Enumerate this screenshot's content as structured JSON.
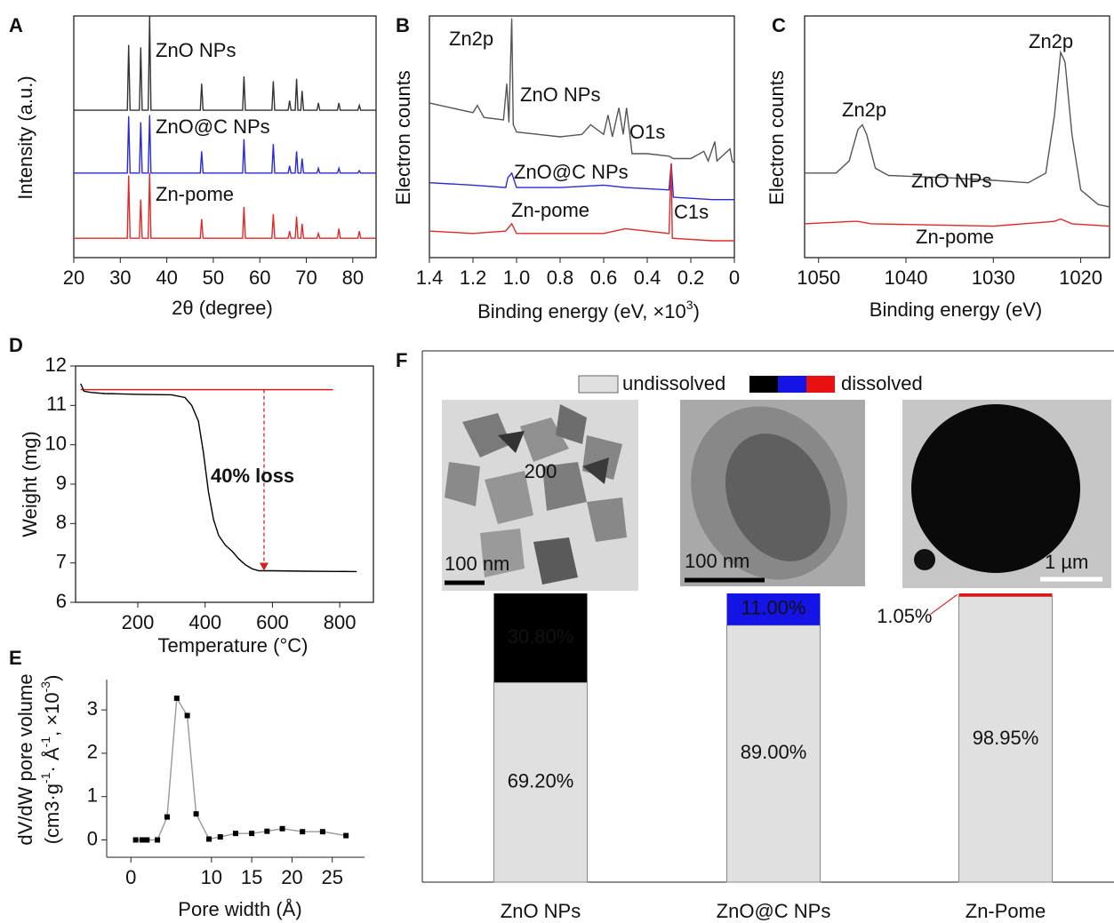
{
  "chart_data": [
    {
      "type": "line",
      "label": "A",
      "ylabel": "Intensity (a.u.)",
      "xlabel": "2θ (degree)",
      "xlim": [
        20,
        85
      ],
      "xticks": [
        20,
        30,
        40,
        50,
        60,
        70,
        80
      ],
      "ylim": [
        0,
        100
      ],
      "x": [
        20,
        31.5,
        31.8,
        32.1,
        34.1,
        34.4,
        34.7,
        36,
        36.3,
        36.6,
        47.2,
        47.5,
        47.8,
        56.3,
        56.6,
        56.9,
        62.6,
        62.9,
        63.2,
        66.1,
        66.4,
        66.7,
        67.6,
        67.9,
        68.2,
        68.8,
        69.1,
        69.4,
        72.3,
        72.6,
        72.9,
        76.7,
        77,
        77.3,
        81.1,
        81.4,
        81.7,
        85
      ],
      "series": [
        {
          "name": "ZnO NPs",
          "color": "#333333",
          "values": [
            61,
            61,
            88,
            61,
            61,
            87,
            61,
            61,
            100,
            61,
            61,
            72,
            61,
            61,
            75,
            61,
            61,
            73,
            61,
            61,
            65,
            61,
            61,
            74,
            61,
            61,
            69,
            61,
            61,
            64,
            61,
            61,
            64,
            61,
            61,
            63,
            61,
            61
          ]
        },
        {
          "name": "ZnO@C NPs",
          "color": "#2a2ad6",
          "values": [
            35,
            35,
            58.5,
            35,
            35,
            56,
            35,
            35,
            59,
            35,
            35,
            44,
            35,
            35,
            49,
            35,
            35,
            47,
            35,
            35,
            38,
            35,
            35,
            44,
            35,
            35,
            41,
            35,
            35,
            37,
            35,
            35,
            37,
            35,
            35,
            36,
            35,
            35
          ]
        },
        {
          "name": "Zn-pome",
          "color": "#e02a2a",
          "values": [
            8,
            8,
            34,
            8,
            8,
            24,
            8,
            8,
            35,
            8,
            8,
            16,
            8,
            8,
            21,
            8,
            8,
            18,
            8,
            8,
            11,
            8,
            8,
            17,
            8,
            8,
            14,
            8,
            8,
            10,
            8,
            8,
            12,
            8,
            8,
            11,
            8,
            8
          ]
        }
      ]
    },
    {
      "type": "line",
      "label": "B",
      "ylabel": "Electron counts",
      "xlabel_parts": [
        "Binding energy (eV, ×10",
        "3",
        ")"
      ],
      "xlim": [
        1.4,
        0
      ],
      "xticks": [
        1.4,
        1.2,
        {
          "value": 1,
          "label": "1.0"
        },
        0.8,
        0.6,
        0.4,
        0.2,
        0
      ],
      "ylim": [
        0,
        100
      ],
      "annotations": [
        "Zn2p",
        "O1s",
        "C1s"
      ],
      "series": [
        {
          "name": "ZnO NPs",
          "color": "#555555",
          "x": [
            1.4,
            1.3,
            1.2,
            1.18,
            1.15,
            1.06,
            1.045,
            1.035,
            1.022,
            1.015,
            1.0,
            0.9,
            0.8,
            0.7,
            0.66,
            0.6,
            0.58,
            0.56,
            0.53,
            0.51,
            0.495,
            0.48,
            0.47,
            0.4,
            0.3,
            0.28,
            0.2,
            0.14,
            0.12,
            0.09,
            0.08,
            0.02,
            0.01,
            0
          ],
          "values": [
            64,
            62,
            60,
            63,
            58,
            57,
            72,
            56,
            99,
            55,
            52,
            51,
            50,
            51,
            55,
            51,
            59,
            50,
            62,
            51,
            62,
            51,
            43,
            43,
            42,
            41,
            41,
            44,
            40,
            48,
            40,
            45,
            40,
            39
          ]
        },
        {
          "name": "ZnO@C NPs",
          "color": "#2a2ad6",
          "x": [
            1.4,
            1.2,
            1.05,
            1.04,
            1.022,
            1.0,
            0.8,
            0.6,
            0.5,
            0.3,
            0.29,
            0.28,
            0.1,
            0
          ],
          "values": [
            31,
            30,
            29,
            33,
            35,
            29,
            29,
            30,
            29,
            28,
            39,
            25,
            24,
            24
          ]
        },
        {
          "name": "Zn-pome",
          "color": "#e02a2a",
          "x": [
            1.4,
            1.2,
            1.05,
            1.022,
            1.0,
            0.6,
            0.5,
            0.3,
            0.29,
            0.285,
            0.1,
            0
          ],
          "values": [
            11,
            10,
            11,
            14,
            10,
            10,
            12,
            10,
            39,
            8,
            7,
            7
          ]
        }
      ]
    },
    {
      "type": "line",
      "label": "C",
      "ylabel": "Electron counts",
      "xlabel": "Binding energy (eV)",
      "xlim": [
        1051.6,
        1016.7
      ],
      "xticks": [
        1050,
        1040,
        1030,
        1020
      ],
      "ylim": [
        0,
        100
      ],
      "annotations": [
        "Zn2p",
        "Zn2p"
      ],
      "series": [
        {
          "name": "ZnO NPs",
          "color": "#555555",
          "x": [
            1051.6,
            1048,
            1046.5,
            1045.5,
            1045,
            1044.5,
            1043.5,
            1042,
            1035,
            1030,
            1026,
            1024,
            1023,
            1022.3,
            1021.8,
            1021,
            1020,
            1018,
            1016.7
          ],
          "values": [
            35,
            35,
            40,
            53,
            55,
            51,
            37,
            34,
            33,
            32,
            31,
            35,
            59,
            85,
            81,
            51,
            28,
            22,
            21
          ]
        },
        {
          "name": "Zn-pome",
          "color": "#e02a2a",
          "x": [
            1051.6,
            1046,
            1045.5,
            1044,
            1030,
            1023,
            1022.3,
            1021,
            1016.7
          ],
          "values": [
            14,
            15,
            15,
            14,
            13,
            15,
            16,
            14,
            13
          ]
        }
      ]
    },
    {
      "type": "line",
      "label": "D",
      "ylabel": "Weight (mg)",
      "xlabel": "Temperature (°C)",
      "xlim": [
        15,
        900
      ],
      "xticks": [
        200,
        400,
        600,
        800
      ],
      "ylim": [
        6,
        12
      ],
      "yticks": [
        6,
        7,
        8,
        9,
        10,
        11,
        12
      ],
      "annotations": [
        "40%  loss"
      ],
      "reference_line": {
        "y": 11.4,
        "x_start": 30,
        "x_end": 780,
        "arrow_x": 575,
        "arrow_to": 6.8
      },
      "series": [
        {
          "color": "#000000",
          "x": [
            30,
            40,
            60,
            100,
            200,
            300,
            340,
            360,
            380,
            395,
            410,
            425,
            440,
            460,
            480,
            500,
            520,
            540,
            560,
            600,
            700,
            850
          ],
          "values": [
            11.55,
            11.36,
            11.33,
            11.3,
            11.28,
            11.27,
            11.2,
            11.0,
            10.6,
            9.8,
            8.8,
            8.1,
            7.7,
            7.45,
            7.3,
            7.1,
            6.95,
            6.85,
            6.8,
            6.8,
            6.79,
            6.78
          ]
        }
      ]
    },
    {
      "type": "scatter-line",
      "label": "E",
      "ylabel_lines": [
        "dV/dW pore volume"
      ],
      "ylabel_parts": [
        "(cm3·g",
        "-1",
        "· Å",
        "-1",
        ", ×10",
        "-3",
        ")"
      ],
      "xlabel": "Pore width (Å)",
      "xlim": [
        -3,
        29
      ],
      "xticks": [
        0,
        10,
        15,
        20,
        25
      ],
      "ylim": [
        -0.4,
        3.7
      ],
      "yticks": [
        0,
        1,
        2,
        3
      ],
      "series": [
        {
          "color": "#000000",
          "x": [
            0.6,
            1.4,
            2,
            3.3,
            4.5,
            5.7,
            7,
            8.1,
            9.7,
            11.1,
            13,
            15,
            16.9,
            18.8,
            21.3,
            23.8,
            26.7
          ],
          "values": [
            0,
            0,
            0,
            0,
            0.53,
            3.27,
            2.87,
            0.6,
            0.02,
            0.07,
            0.15,
            0.15,
            0.2,
            0.26,
            0.19,
            0.19,
            0.1
          ]
        }
      ]
    },
    {
      "type": "stacked-bar",
      "label": "F",
      "ylim": [
        0,
        100
      ],
      "categories": [
        "ZnO NPs",
        "ZnO@C NPs",
        "Zn-Pome"
      ],
      "category_colors": [
        "#000000",
        "#2a2ad6",
        "#e01010"
      ],
      "series": [
        {
          "name": "undissolved",
          "color": "#e0e0e0",
          "values": [
            69.2,
            89,
            98.95
          ],
          "value_labels": [
            "69.20%",
            "89.00%",
            "98.95%"
          ]
        },
        {
          "name": "dissolved",
          "colors": [
            "#000000",
            "#1414e6",
            "#e81010"
          ],
          "values": [
            30.8,
            11,
            1.05
          ],
          "value_labels": [
            "30.80%",
            "11.00%",
            "1.05%"
          ]
        }
      ],
      "images": [
        {
          "scale_bar": "100 nm",
          "annotation": "200"
        },
        {
          "scale_bar": "100 nm"
        },
        {
          "scale_bar": "1 µm"
        }
      ]
    }
  ]
}
